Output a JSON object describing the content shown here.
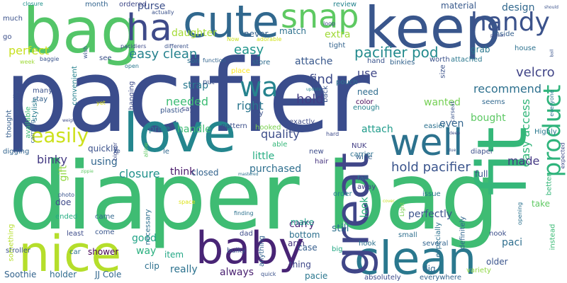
{
  "words": [
    {
      "text": "pacifier",
      "color": "#3b4d8c"
    },
    {
      "text": "diaper bag",
      "color": "#3fbc73"
    },
    {
      "text": "bag",
      "color": "#53c568"
    },
    {
      "text": "keep",
      "color": "#39568c"
    },
    {
      "text": "love",
      "color": "#24868e"
    },
    {
      "text": "fit",
      "color": "#35b779"
    },
    {
      "text": "cute",
      "color": "#31688e"
    },
    {
      "text": "baby",
      "color": "#482475"
    },
    {
      "text": "nice",
      "color": "#b5de2b"
    },
    {
      "text": "clean",
      "color": "#2a788e"
    },
    {
      "text": "great",
      "color": "#404688"
    },
    {
      "text": "well",
      "color": "#2c728e"
    },
    {
      "text": "ha",
      "color": "#3e4a89"
    },
    {
      "text": "snap",
      "color": "#5ec962"
    },
    {
      "text": "handy",
      "color": "#3b528b"
    },
    {
      "text": "product",
      "color": "#2fb47c"
    },
    {
      "text": "easily",
      "color": "#cde11d"
    },
    {
      "text": "wa",
      "color": "#25838e"
    },
    {
      "text": "perfect",
      "color": "#c8e020"
    },
    {
      "text": "easy clean",
      "color": "#26828e"
    },
    {
      "text": "pacifier pod",
      "color": "#238a8d"
    },
    {
      "text": "easy",
      "color": "#1f948c"
    },
    {
      "text": "velcro",
      "color": "#414487"
    },
    {
      "text": "recommend",
      "color": "#2d708e"
    },
    {
      "text": "hold pacifier",
      "color": "#3a548c"
    },
    {
      "text": "quality",
      "color": "#3d4d8a"
    },
    {
      "text": "needed",
      "color": "#3dbc74"
    },
    {
      "text": "strap",
      "color": "#29798e"
    },
    {
      "text": "right",
      "color": "#2a768e"
    },
    {
      "text": "hold",
      "color": "#433e85"
    },
    {
      "text": "binky",
      "color": "#443a83"
    },
    {
      "text": "easy access",
      "color": "#32b67a"
    },
    {
      "text": "use",
      "color": "#3f4788"
    },
    {
      "text": "find",
      "color": "#3e4c8a"
    },
    {
      "text": "attache",
      "color": "#38588c"
    },
    {
      "text": "made",
      "color": "#443983"
    },
    {
      "text": "purchased",
      "color": "#2e6f8e"
    },
    {
      "text": "little",
      "color": "#26ad81"
    },
    {
      "text": "attach",
      "color": "#1e9b8a"
    },
    {
      "text": "bought",
      "color": "#5cc863"
    },
    {
      "text": "wanted",
      "color": "#75d054"
    },
    {
      "text": "need",
      "color": "#2f6c8e"
    },
    {
      "text": "daughter",
      "color": "#a5db36"
    },
    {
      "text": "match",
      "color": "#2d718e"
    },
    {
      "text": "extra",
      "color": "#a0da39"
    },
    {
      "text": "purse",
      "color": "#3c4f8a"
    },
    {
      "text": "never",
      "color": "#34608d"
    },
    {
      "text": "design",
      "color": "#31688e"
    },
    {
      "text": "material",
      "color": "#38598c"
    },
    {
      "text": "grab",
      "color": "#2a788e"
    },
    {
      "text": "handle",
      "color": "#3fbc73"
    },
    {
      "text": "closure",
      "color": "#21918c"
    },
    {
      "text": "using",
      "color": "#31668e"
    },
    {
      "text": "gift",
      "color": "#93d741"
    },
    {
      "text": "good",
      "color": "#20a386"
    },
    {
      "text": "way",
      "color": "#2ab07f"
    },
    {
      "text": "look",
      "color": "#2db27d"
    },
    {
      "text": "carry",
      "color": "#482677"
    },
    {
      "text": "make",
      "color": "#1f9e89"
    },
    {
      "text": "still",
      "color": "#2c718e"
    },
    {
      "text": "perfectly",
      "color": "#3b528b"
    },
    {
      "text": "paci",
      "color": "#2e6e8e"
    },
    {
      "text": "really",
      "color": "#2c728e"
    },
    {
      "text": "always",
      "color": "#481f70"
    },
    {
      "text": "holder",
      "color": "#2f6b8e"
    },
    {
      "text": "Soothie",
      "color": "#33638d"
    },
    {
      "text": "JJ Cole",
      "color": "#31678e"
    },
    {
      "text": "think",
      "color": "#481769"
    },
    {
      "text": "closed",
      "color": "#33638d"
    },
    {
      "text": "binky",
      "color": "#443a83"
    },
    {
      "text": "quickly",
      "color": "#3b518b"
    },
    {
      "text": "pattern",
      "color": "#3c4f8a"
    },
    {
      "text": "price",
      "color": "#26828e"
    },
    {
      "text": "clip",
      "color": "#2d708e"
    },
    {
      "text": "item",
      "color": "#22a785"
    },
    {
      "text": "thing",
      "color": "#3f4889"
    },
    {
      "text": "doe",
      "color": "#3e4989"
    },
    {
      "text": "came",
      "color": "#31688e"
    },
    {
      "text": "ended",
      "color": "#25ac82"
    },
    {
      "text": "come",
      "color": "#39568c"
    },
    {
      "text": "shower",
      "color": "#440154"
    },
    {
      "text": "arm",
      "color": "#46337e"
    },
    {
      "text": "case",
      "color": "#355e8d"
    },
    {
      "text": "bottom",
      "color": "#2d708e"
    },
    {
      "text": "pacie",
      "color": "#2a778e"
    },
    {
      "text": "dig",
      "color": "#31688e"
    },
    {
      "text": "even",
      "color": "#32648e"
    },
    {
      "text": "full",
      "color": "#3b528b"
    },
    {
      "text": "older",
      "color": "#3a548c"
    },
    {
      "text": "take",
      "color": "#5ec962"
    },
    {
      "text": "issue",
      "color": "#2a788e"
    },
    {
      "text": "wipe",
      "color": "#355f8d"
    },
    {
      "text": "fall",
      "color": "#2a768e"
    },
    {
      "text": "away",
      "color": "#414487"
    },
    {
      "text": "order",
      "color": "#26828e"
    },
    {
      "text": "small",
      "color": "#2e6e8e"
    },
    {
      "text": "hook",
      "color": "#2c718e"
    },
    {
      "text": "several",
      "color": "#32648e"
    },
    {
      "text": "nook",
      "color": "#3c4f8a"
    },
    {
      "text": "big",
      "color": "#22a884"
    },
    {
      "text": "NUK",
      "color": "#433e85"
    },
    {
      "text": "carrier",
      "color": "#2d708e"
    },
    {
      "text": "new",
      "color": "#3e4c8a"
    },
    {
      "text": "hair",
      "color": "#46337e"
    },
    {
      "text": "usually",
      "color": "#3a548c"
    },
    {
      "text": "many",
      "color": "#3b528b"
    },
    {
      "text": "stay",
      "color": "#34618d"
    },
    {
      "text": "stylish",
      "color": "#287c8e"
    },
    {
      "text": "thought",
      "color": "#355e8d"
    },
    {
      "text": "available",
      "color": "#3bbb75"
    },
    {
      "text": "digging",
      "color": "#32658e"
    },
    {
      "text": "much",
      "color": "#3b528b"
    },
    {
      "text": "go",
      "color": "#3c4f8a"
    },
    {
      "text": "month",
      "color": "#32648e"
    },
    {
      "text": "ordered",
      "color": "#3e4989"
    },
    {
      "text": "review",
      "color": "#25848e"
    },
    {
      "text": "son",
      "color": "#2d708e"
    },
    {
      "text": "see",
      "color": "#3c4f8a"
    },
    {
      "text": "hand",
      "color": "#3a548c"
    },
    {
      "text": "color",
      "color": "#440154"
    },
    {
      "text": "size",
      "color": "#3b528b"
    },
    {
      "text": "seems",
      "color": "#31688e"
    },
    {
      "text": "store",
      "color": "#2f6c8e"
    },
    {
      "text": "place",
      "color": "#fde725"
    },
    {
      "text": "cry",
      "color": "#3b528b"
    },
    {
      "text": "exactly",
      "color": "#3e4a89"
    },
    {
      "text": "hooked",
      "color": "#7ad151"
    },
    {
      "text": "able",
      "color": "#35b779"
    },
    {
      "text": "easier",
      "color": "#2c718e"
    },
    {
      "text": "Highly",
      "color": "#2a788e"
    },
    {
      "text": "hanging",
      "color": "#3e4c8a"
    },
    {
      "text": "convenient",
      "color": "#26828e"
    },
    {
      "text": "plastic",
      "color": "#39568c"
    },
    {
      "text": "put",
      "color": "#3b528b"
    },
    {
      "text": "say",
      "color": "#3e4c8a"
    },
    {
      "text": "back",
      "color": "#3a548c"
    },
    {
      "text": "pouch",
      "color": "#2c718e"
    },
    {
      "text": "enough",
      "color": "#26828e"
    },
    {
      "text": "tight",
      "color": "#33638d"
    },
    {
      "text": "attached",
      "color": "#2a778e"
    },
    {
      "text": "worth",
      "color": "#3b528b"
    },
    {
      "text": "inside",
      "color": "#355f8d"
    },
    {
      "text": "house",
      "color": "#2c718e"
    },
    {
      "text": "instead",
      "color": "#3bbb75"
    },
    {
      "text": "better",
      "color": "#35b779"
    },
    {
      "text": "expected",
      "color": "#3e4c8a"
    },
    {
      "text": "everyone",
      "color": "#2a788e"
    },
    {
      "text": "diaper",
      "color": "#3c4f8a"
    },
    {
      "text": "especially",
      "color": "#2d708e"
    },
    {
      "text": "definitely",
      "color": "#32658e"
    },
    {
      "text": "opening",
      "color": "#2c718e"
    },
    {
      "text": "variety",
      "color": "#8fd744"
    },
    {
      "text": "Light",
      "color": "#7ad151"
    },
    {
      "text": "absolutely",
      "color": "#3e4c8a"
    },
    {
      "text": "everywhere",
      "color": "#33638d"
    },
    {
      "text": "quick",
      "color": "#3b528b"
    },
    {
      "text": "finding",
      "color": "#2c718e"
    },
    {
      "text": "dad",
      "color": "#3e4c8a"
    },
    {
      "text": "bulky",
      "color": "#3a548c"
    },
    {
      "text": "necessary",
      "color": "#2d708e"
    },
    {
      "text": "anything",
      "color": "#32648e"
    },
    {
      "text": "stroller",
      "color": "#3b528b"
    },
    {
      "text": "least",
      "color": "#3e4c8a"
    },
    {
      "text": "something",
      "color": "#b5de2b"
    },
    {
      "text": "photo",
      "color": "#3a548c"
    },
    {
      "text": "car",
      "color": "#2c718e"
    },
    {
      "text": "space",
      "color": "#dde318"
    },
    {
      "text": "cover",
      "color": "#c8e020"
    },
    {
      "text": "bigger",
      "color": "#3e4c8a"
    },
    {
      "text": "allow",
      "color": "#5ec962"
    },
    {
      "text": "carrying",
      "color": "#33638d"
    },
    {
      "text": "weight",
      "color": "#3e4c8a"
    },
    {
      "text": "le",
      "color": "#31688e"
    },
    {
      "text": "ve",
      "color": "#3a548c"
    },
    {
      "text": "yet",
      "color": "#dde318"
    },
    {
      "text": "wish",
      "color": "#3b528b"
    },
    {
      "text": "baggie",
      "color": "#3a548c"
    },
    {
      "text": "week",
      "color": "#9fda3a"
    },
    {
      "text": "closure",
      "color": "#21918c"
    },
    {
      "text": "open",
      "color": "#2a788e"
    },
    {
      "text": "pacidiers",
      "color": "#3e4c8a"
    },
    {
      "text": "different",
      "color": "#3b528b"
    },
    {
      "text": "function",
      "color": "#32648e"
    },
    {
      "text": "Now",
      "color": "#c8e020"
    },
    {
      "text": "adorable",
      "color": "#d2e21b"
    },
    {
      "text": "update",
      "color": "#26828e"
    },
    {
      "text": "loop",
      "color": "#3e4c8a"
    },
    {
      "text": "actually",
      "color": "#3b528b"
    },
    {
      "text": "person",
      "color": "#3e4c8a"
    },
    {
      "text": "carseat",
      "color": "#3a548c"
    },
    {
      "text": "should",
      "color": "#3b528b"
    },
    {
      "text": "deep",
      "color": "#3e4c8a"
    },
    {
      "text": "due",
      "color": "#3a548c"
    },
    {
      "text": "hard",
      "color": "#3e4c8a"
    },
    {
      "text": "mastered",
      "color": "#2c718e"
    },
    {
      "text": "ball",
      "color": "#3a548c"
    },
    {
      "text": "zippie",
      "color": "#5ec962"
    },
    {
      "text": "binkies",
      "color": "#33638d"
    }
  ]
}
